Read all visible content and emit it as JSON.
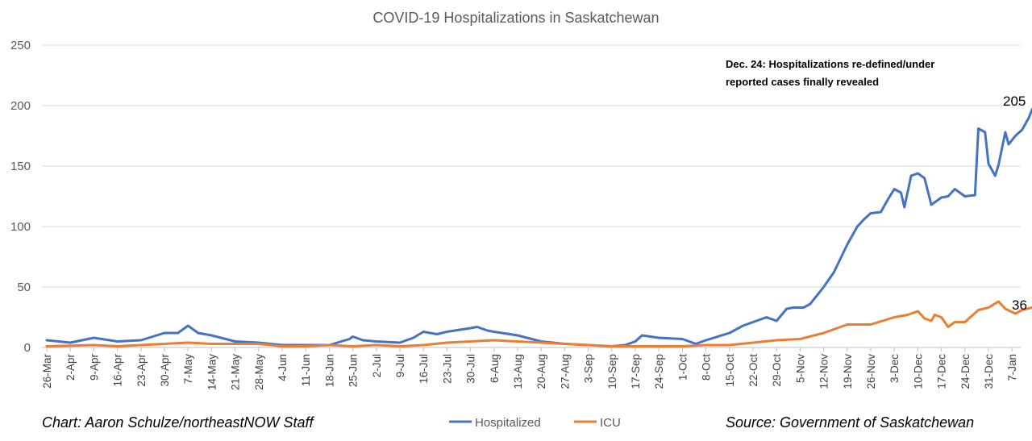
{
  "chart_data": {
    "type": "line",
    "title": "COVID-19 Hospitalizations in Saskatchewan",
    "ylim": [
      0,
      250
    ],
    "yticks": [
      0,
      50,
      100,
      150,
      200,
      250
    ],
    "grid": "horizontal",
    "legend_position": "bottom",
    "x_start": "2020-03-26",
    "x_tick_labels": [
      "26-Mar",
      "2-Apr",
      "9-Apr",
      "16-Apr",
      "23-Apr",
      "30-Apr",
      "7-May",
      "14-May",
      "21-May",
      "28-May",
      "4-Jun",
      "11-Jun",
      "18-Jun",
      "25-Jun",
      "2-Jul",
      "9-Jul",
      "16-Jul",
      "23-Jul",
      "30-Jul",
      "6-Aug",
      "13-Aug",
      "20-Aug",
      "27-Aug",
      "3-Sep",
      "10-Sep",
      "17-Sep",
      "24-Sep",
      "1-Oct",
      "8-Oct",
      "15-Oct",
      "22-Oct",
      "29-Oct",
      "5-Nov",
      "12-Nov",
      "19-Nov",
      "26-Nov",
      "3-Dec",
      "10-Dec",
      "17-Dec",
      "24-Dec",
      "31-Dec",
      "7-Jan"
    ],
    "series": [
      {
        "name": "Hospitalized",
        "color": "#4472C4",
        "points": [
          [
            "2020-03-26",
            6
          ],
          [
            "2020-04-02",
            4
          ],
          [
            "2020-04-09",
            8
          ],
          [
            "2020-04-16",
            5
          ],
          [
            "2020-04-23",
            6
          ],
          [
            "2020-04-30",
            12
          ],
          [
            "2020-05-04",
            12
          ],
          [
            "2020-05-07",
            18
          ],
          [
            "2020-05-10",
            12
          ],
          [
            "2020-05-14",
            10
          ],
          [
            "2020-05-21",
            5
          ],
          [
            "2020-05-28",
            4
          ],
          [
            "2020-06-04",
            2
          ],
          [
            "2020-06-11",
            2
          ],
          [
            "2020-06-18",
            2
          ],
          [
            "2020-06-24",
            7
          ],
          [
            "2020-06-25",
            9
          ],
          [
            "2020-06-28",
            6
          ],
          [
            "2020-07-02",
            5
          ],
          [
            "2020-07-09",
            4
          ],
          [
            "2020-07-13",
            8
          ],
          [
            "2020-07-16",
            13
          ],
          [
            "2020-07-20",
            11
          ],
          [
            "2020-07-23",
            13
          ],
          [
            "2020-07-30",
            16
          ],
          [
            "2020-08-01",
            17
          ],
          [
            "2020-08-04",
            14
          ],
          [
            "2020-08-06",
            13
          ],
          [
            "2020-08-13",
            10
          ],
          [
            "2020-08-20",
            5
          ],
          [
            "2020-08-27",
            3
          ],
          [
            "2020-09-03",
            2
          ],
          [
            "2020-09-10",
            1
          ],
          [
            "2020-09-14",
            2
          ],
          [
            "2020-09-17",
            5
          ],
          [
            "2020-09-19",
            10
          ],
          [
            "2020-09-24",
            8
          ],
          [
            "2020-10-01",
            7
          ],
          [
            "2020-10-03",
            5
          ],
          [
            "2020-10-05",
            3
          ],
          [
            "2020-10-08",
            6
          ],
          [
            "2020-10-15",
            12
          ],
          [
            "2020-10-19",
            18
          ],
          [
            "2020-10-22",
            21
          ],
          [
            "2020-10-26",
            25
          ],
          [
            "2020-10-29",
            22
          ],
          [
            "2020-11-01",
            32
          ],
          [
            "2020-11-03",
            33
          ],
          [
            "2020-11-06",
            33
          ],
          [
            "2020-11-08",
            36
          ],
          [
            "2020-11-12",
            50
          ],
          [
            "2020-11-15",
            62
          ],
          [
            "2020-11-19",
            85
          ],
          [
            "2020-11-22",
            100
          ],
          [
            "2020-11-24",
            106
          ],
          [
            "2020-11-26",
            111
          ],
          [
            "2020-11-29",
            112
          ],
          [
            "2020-12-01",
            122
          ],
          [
            "2020-12-03",
            131
          ],
          [
            "2020-12-05",
            128
          ],
          [
            "2020-12-06",
            116
          ],
          [
            "2020-12-08",
            142
          ],
          [
            "2020-12-10",
            144
          ],
          [
            "2020-12-12",
            140
          ],
          [
            "2020-12-14",
            118
          ],
          [
            "2020-12-16",
            122
          ],
          [
            "2020-12-17",
            124
          ],
          [
            "2020-12-19",
            125
          ],
          [
            "2020-12-21",
            131
          ],
          [
            "2020-12-24",
            125
          ],
          [
            "2020-12-27",
            126
          ],
          [
            "2020-12-28",
            181
          ],
          [
            "2020-12-30",
            178
          ],
          [
            "2020-12-31",
            152
          ],
          [
            "2021-01-02",
            142
          ],
          [
            "2021-01-03",
            151
          ],
          [
            "2021-01-05",
            178
          ],
          [
            "2021-01-06",
            168
          ],
          [
            "2021-01-08",
            175
          ],
          [
            "2021-01-10",
            180
          ],
          [
            "2021-01-12",
            190
          ],
          [
            "2021-01-13",
            197
          ],
          [
            "2021-01-14",
            191
          ],
          [
            "2021-01-15",
            205
          ]
        ]
      },
      {
        "name": "ICU",
        "color": "#ED7D31",
        "points": [
          [
            "2020-03-26",
            1
          ],
          [
            "2020-04-09",
            2
          ],
          [
            "2020-04-16",
            1
          ],
          [
            "2020-04-30",
            3
          ],
          [
            "2020-05-07",
            4
          ],
          [
            "2020-05-14",
            3
          ],
          [
            "2020-05-21",
            3
          ],
          [
            "2020-05-28",
            3
          ],
          [
            "2020-06-04",
            1
          ],
          [
            "2020-06-11",
            1
          ],
          [
            "2020-06-18",
            2
          ],
          [
            "2020-06-25",
            1
          ],
          [
            "2020-07-02",
            2
          ],
          [
            "2020-07-09",
            1
          ],
          [
            "2020-07-16",
            2
          ],
          [
            "2020-07-23",
            4
          ],
          [
            "2020-07-30",
            5
          ],
          [
            "2020-08-06",
            6
          ],
          [
            "2020-08-13",
            5
          ],
          [
            "2020-08-20",
            4
          ],
          [
            "2020-08-27",
            3
          ],
          [
            "2020-09-03",
            2
          ],
          [
            "2020-09-10",
            1
          ],
          [
            "2020-09-17",
            1
          ],
          [
            "2020-09-24",
            1
          ],
          [
            "2020-10-01",
            1
          ],
          [
            "2020-10-08",
            2
          ],
          [
            "2020-10-15",
            2
          ],
          [
            "2020-10-22",
            4
          ],
          [
            "2020-10-29",
            6
          ],
          [
            "2020-11-05",
            7
          ],
          [
            "2020-11-12",
            12
          ],
          [
            "2020-11-19",
            19
          ],
          [
            "2020-11-26",
            19
          ],
          [
            "2020-12-03",
            25
          ],
          [
            "2020-12-07",
            27
          ],
          [
            "2020-12-10",
            30
          ],
          [
            "2020-12-12",
            24
          ],
          [
            "2020-12-14",
            22
          ],
          [
            "2020-12-15",
            27
          ],
          [
            "2020-12-17",
            25
          ],
          [
            "2020-12-19",
            17
          ],
          [
            "2020-12-21",
            21
          ],
          [
            "2020-12-24",
            21
          ],
          [
            "2020-12-26",
            26
          ],
          [
            "2020-12-28",
            31
          ],
          [
            "2020-12-31",
            33
          ],
          [
            "2021-01-03",
            38
          ],
          [
            "2021-01-05",
            32
          ],
          [
            "2021-01-08",
            28
          ],
          [
            "2021-01-10",
            31
          ],
          [
            "2021-01-13",
            33
          ],
          [
            "2021-01-15",
            36
          ]
        ]
      }
    ],
    "annotation": {
      "line1": "Dec. 24: Hospitalizations re-defined/under",
      "line2": "reported cases finally revealed"
    },
    "end_labels": {
      "hospitalized": "205",
      "icu": "36"
    }
  },
  "footer": {
    "left": "Chart: Aaron Schulze/northeastNOW Staff",
    "right": "Source: Government of Saskatchewan"
  }
}
